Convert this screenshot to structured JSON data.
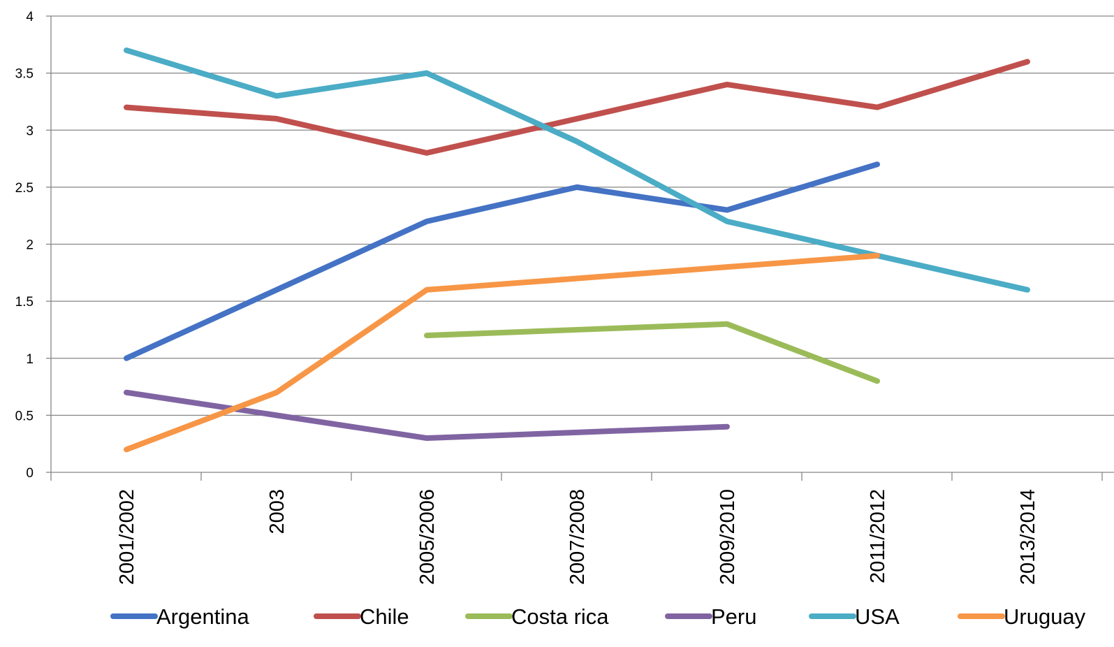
{
  "chart_data": {
    "type": "line",
    "title": "",
    "xlabel": "",
    "ylabel": "",
    "categories": [
      "2001/2002",
      "2003",
      "2005/2006",
      "2007/2008",
      "2009/2010",
      "2011/2012",
      "2013/2014"
    ],
    "ylim": [
      0,
      4
    ],
    "yticks": [
      "0",
      "0.5",
      "1",
      "1.5",
      "2",
      "2.5",
      "3",
      "3.5",
      "4"
    ],
    "grid": true,
    "legend_position": "bottom",
    "series": [
      {
        "name": "Argentina",
        "color": "#4472C4",
        "values": [
          1.0,
          1.6,
          2.2,
          2.5,
          2.3,
          2.7,
          null
        ]
      },
      {
        "name": "Chile",
        "color": "#C0504D",
        "values": [
          3.2,
          3.1,
          2.8,
          3.1,
          3.4,
          3.2,
          3.6
        ]
      },
      {
        "name": "Costa rica",
        "color": "#9BBB59",
        "values": [
          null,
          null,
          1.2,
          1.25,
          1.3,
          0.8,
          null
        ]
      },
      {
        "name": "Peru",
        "color": "#8064A2",
        "values": [
          0.7,
          0.5,
          0.3,
          0.35,
          0.4,
          null,
          null
        ]
      },
      {
        "name": "USA",
        "color": "#4BACC6",
        "values": [
          3.7,
          3.3,
          3.5,
          2.9,
          2.2,
          1.9,
          1.6
        ]
      },
      {
        "name": "Uruguay",
        "color": "#F79646",
        "values": [
          0.2,
          0.7,
          1.6,
          1.7,
          1.8,
          1.9,
          null
        ]
      }
    ]
  }
}
